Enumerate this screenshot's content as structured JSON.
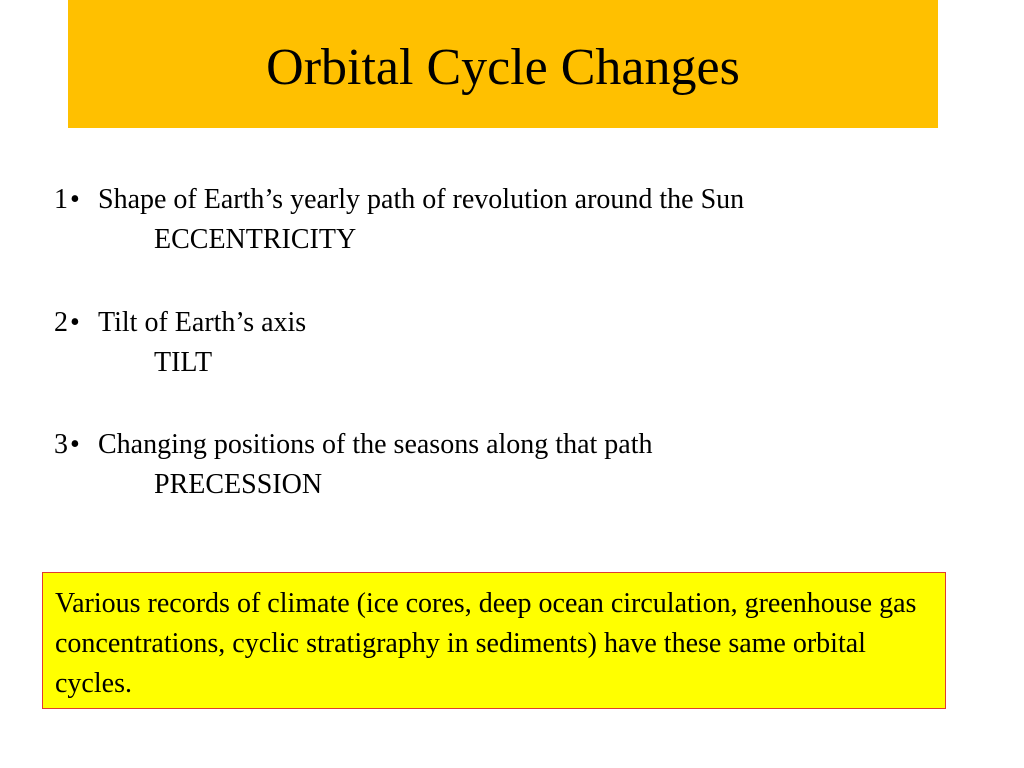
{
  "slide": {
    "title": "Orbital Cycle Changes",
    "bullet_char": "•",
    "points": [
      {
        "number": "1",
        "text": "Shape of Earth’s yearly path of revolution around the Sun",
        "term": "ECCENTRICITY"
      },
      {
        "number": "2",
        "text": "Tilt of Earth’s axis",
        "term": "TILT"
      },
      {
        "number": "3",
        "text": "Changing positions of the seasons along that path",
        "term": "PRECESSION"
      }
    ],
    "note": "Various records of climate (ice cores, deep ocean circulation, greenhouse gas concentrations, cyclic stratigraphy in sediments) have these same orbital cycles."
  },
  "colors": {
    "title_banner": "#FFC000",
    "note_background": "#FFFF00",
    "note_border": "#E03C31"
  }
}
